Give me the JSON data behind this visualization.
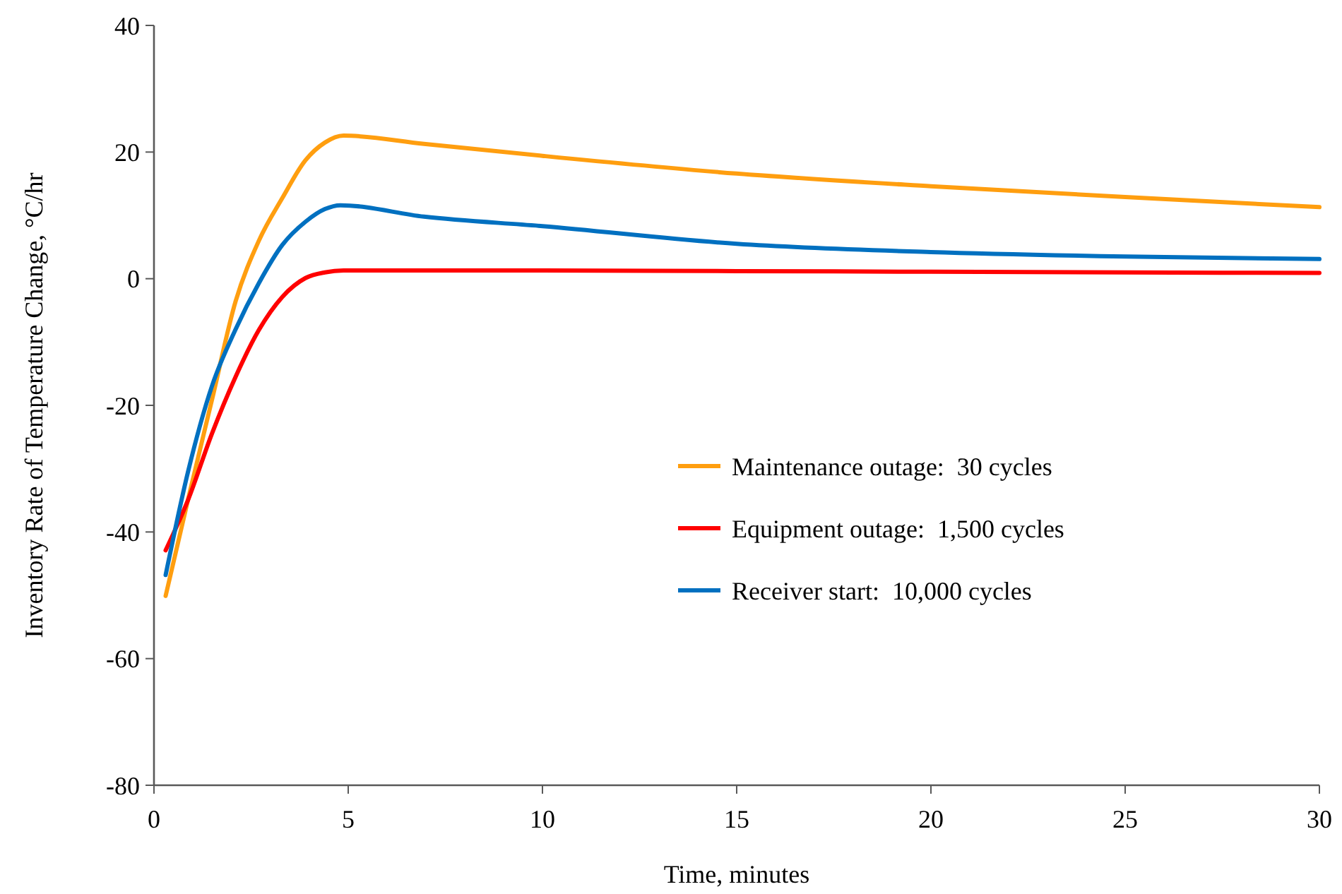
{
  "chart_data": {
    "type": "line",
    "xlabel": "Time, minutes",
    "ylabel": "Inventory Rate of Temperature Change, °C/hr",
    "xlim": [
      0,
      30
    ],
    "xticks": [
      0,
      5,
      10,
      15,
      20,
      25,
      30
    ],
    "ylim": [
      -80,
      40
    ],
    "yticks": [
      -80,
      -60,
      -40,
      -20,
      0,
      20,
      40
    ],
    "grid": false,
    "legend": "right",
    "marker": "none",
    "line_style": "solid",
    "series": [
      {
        "name": "Maintenance outage:  30 cycles",
        "color": "#ff9e0f",
        "x": [
          0.3,
          0.88,
          1.49,
          2.1,
          2.7,
          3.3,
          3.9,
          4.4,
          4.88,
          6.95,
          10,
          15,
          20,
          25,
          30
        ],
        "values": [
          -50.1,
          -34.8,
          -19.2,
          -3.6,
          6.0,
          12.7,
          18.7,
          21.5,
          22.6,
          21.3,
          19.4,
          16.6,
          14.6,
          12.9,
          11.3
        ]
      },
      {
        "name": "Equipment outage:  1,500 cycles",
        "color": "#ff0000",
        "x": [
          0.3,
          0.88,
          1.49,
          2.1,
          2.7,
          3.3,
          3.9,
          4.4,
          4.88,
          6.95,
          10,
          15,
          20,
          25,
          30
        ],
        "values": [
          -42.9,
          -34.9,
          -24.5,
          -15.5,
          -8.1,
          -2.9,
          0.1,
          1.0,
          1.3,
          1.3,
          1.3,
          1.2,
          1.1,
          1.0,
          0.9
        ]
      },
      {
        "name": "Receiver start:  10,000 cycles",
        "color": "#0070c0",
        "x": [
          0.3,
          0.88,
          1.49,
          2.1,
          2.7,
          3.3,
          3.9,
          4.4,
          4.8,
          6.95,
          10,
          15,
          20,
          25,
          30
        ],
        "values": [
          -46.8,
          -30.4,
          -17.0,
          -8.0,
          -0.7,
          5.3,
          9.0,
          11.0,
          11.6,
          9.8,
          8.3,
          5.5,
          4.2,
          3.5,
          3.1
        ]
      }
    ]
  }
}
